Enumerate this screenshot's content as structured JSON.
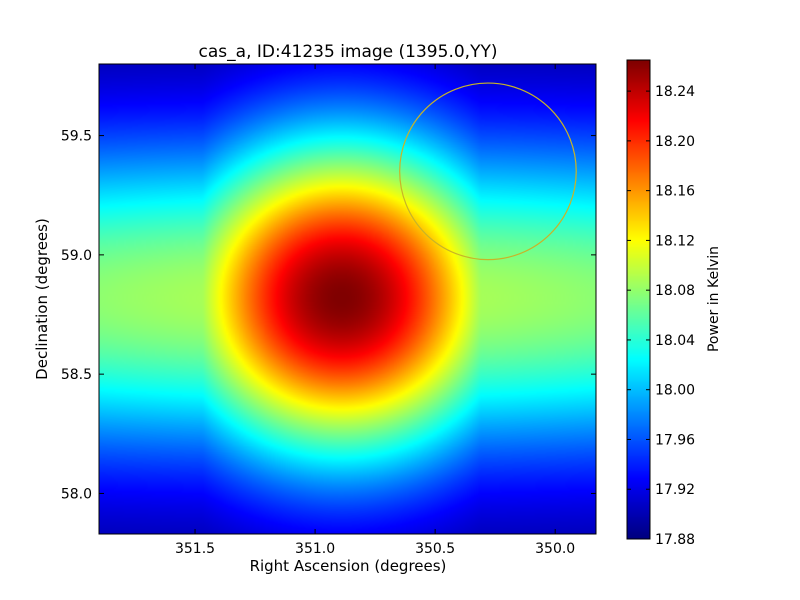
{
  "chart_data": {
    "type": "heatmap",
    "title": "cas_a, ID:41235 image (1395.0,YY)",
    "xlabel": "Right Ascension (degrees)",
    "ylabel": "Declination (degrees)",
    "xlim": [
      351.9,
      349.83
    ],
    "ylim": [
      57.83,
      59.8
    ],
    "x_ticks": [
      351.5,
      351.0,
      350.5,
      350.0
    ],
    "x_tick_labels": [
      "351.5",
      "351.0",
      "350.5",
      "350.0"
    ],
    "y_ticks": [
      58.0,
      58.5,
      59.0,
      59.5
    ],
    "y_tick_labels": [
      "58.0",
      "58.5",
      "59.0",
      "59.5"
    ],
    "colorbar": {
      "label": "Power in Kelvin",
      "range": [
        17.88,
        18.265
      ],
      "ticks": [
        17.88,
        17.92,
        17.96,
        18.0,
        18.04,
        18.08,
        18.12,
        18.16,
        18.2,
        18.24
      ],
      "tick_labels": [
        "17.88",
        "17.92",
        "17.96",
        "18.00",
        "18.04",
        "18.08",
        "18.12",
        "18.16",
        "18.20",
        "18.24"
      ],
      "colormap": "jet"
    },
    "field": {
      "peak_center": [
        350.89,
        58.82
      ],
      "peak_value": 18.265,
      "background_value": 17.88,
      "sigma_ra": 0.52,
      "sigma_dec": 0.48,
      "wide_ra_sigma": 2.8
    },
    "annotations": [
      {
        "type": "circle",
        "center": [
          350.28,
          59.35
        ],
        "radius_dec": 0.37,
        "color": "#c8b428"
      }
    ],
    "grid": false
  }
}
